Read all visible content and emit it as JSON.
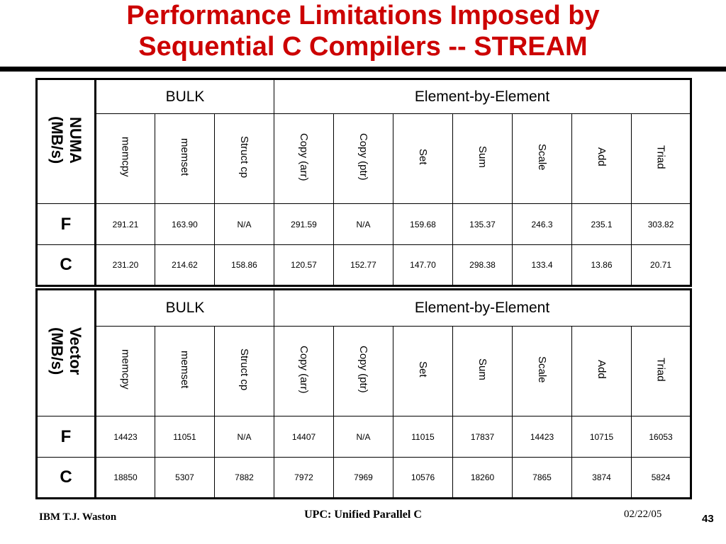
{
  "title": {
    "line1": "Performance Limitations Imposed by",
    "line2": "Sequential C Compilers -- STREAM"
  },
  "tables": [
    {
      "label_line1": "NUMA",
      "label_line2": "(MB/s)",
      "group_bulk": "BULK",
      "group_element": "Element-by-Element",
      "columns": [
        "memcpy",
        "memset",
        "Struct cp",
        "Copy (arr)",
        "Copy (ptr)",
        "Set",
        "Sum",
        "Scale",
        "Add",
        "Triad"
      ],
      "rows": [
        {
          "label": "F",
          "values": [
            "291.21",
            "163.90",
            "N/A",
            "291.59",
            "N/A",
            "159.68",
            "135.37",
            "246.3",
            "235.1",
            "303.82"
          ]
        },
        {
          "label": "C",
          "values": [
            "231.20",
            "214.62",
            "158.86",
            "120.57",
            "152.77",
            "147.70",
            "298.38",
            "133.4",
            "13.86",
            "20.71"
          ]
        }
      ]
    },
    {
      "label_line1": "Vector",
      "label_line2": "(MB/s)",
      "group_bulk": "BULK",
      "group_element": "Element-by-Element",
      "columns": [
        "memcpy",
        "memset",
        "Struct cp",
        "Copy (arr)",
        "Copy (ptr)",
        "Set",
        "Sum",
        "Scale",
        "Add",
        "Triad"
      ],
      "rows": [
        {
          "label": "F",
          "values": [
            "14423",
            "11051",
            "N/A",
            "14407",
            "N/A",
            "11015",
            "17837",
            "14423",
            "10715",
            "16053"
          ]
        },
        {
          "label": "C",
          "values": [
            "18850",
            "5307",
            "7882",
            "7972",
            "7969",
            "10576",
            "18260",
            "7865",
            "3874",
            "5824"
          ]
        }
      ]
    }
  ],
  "footer": {
    "left": "IBM T.J. Waston",
    "center": "UPC: Unified Parallel C",
    "date": "02/22/05",
    "page": "43"
  },
  "colors": {
    "title": "#cc0000",
    "rule": "#000000"
  }
}
